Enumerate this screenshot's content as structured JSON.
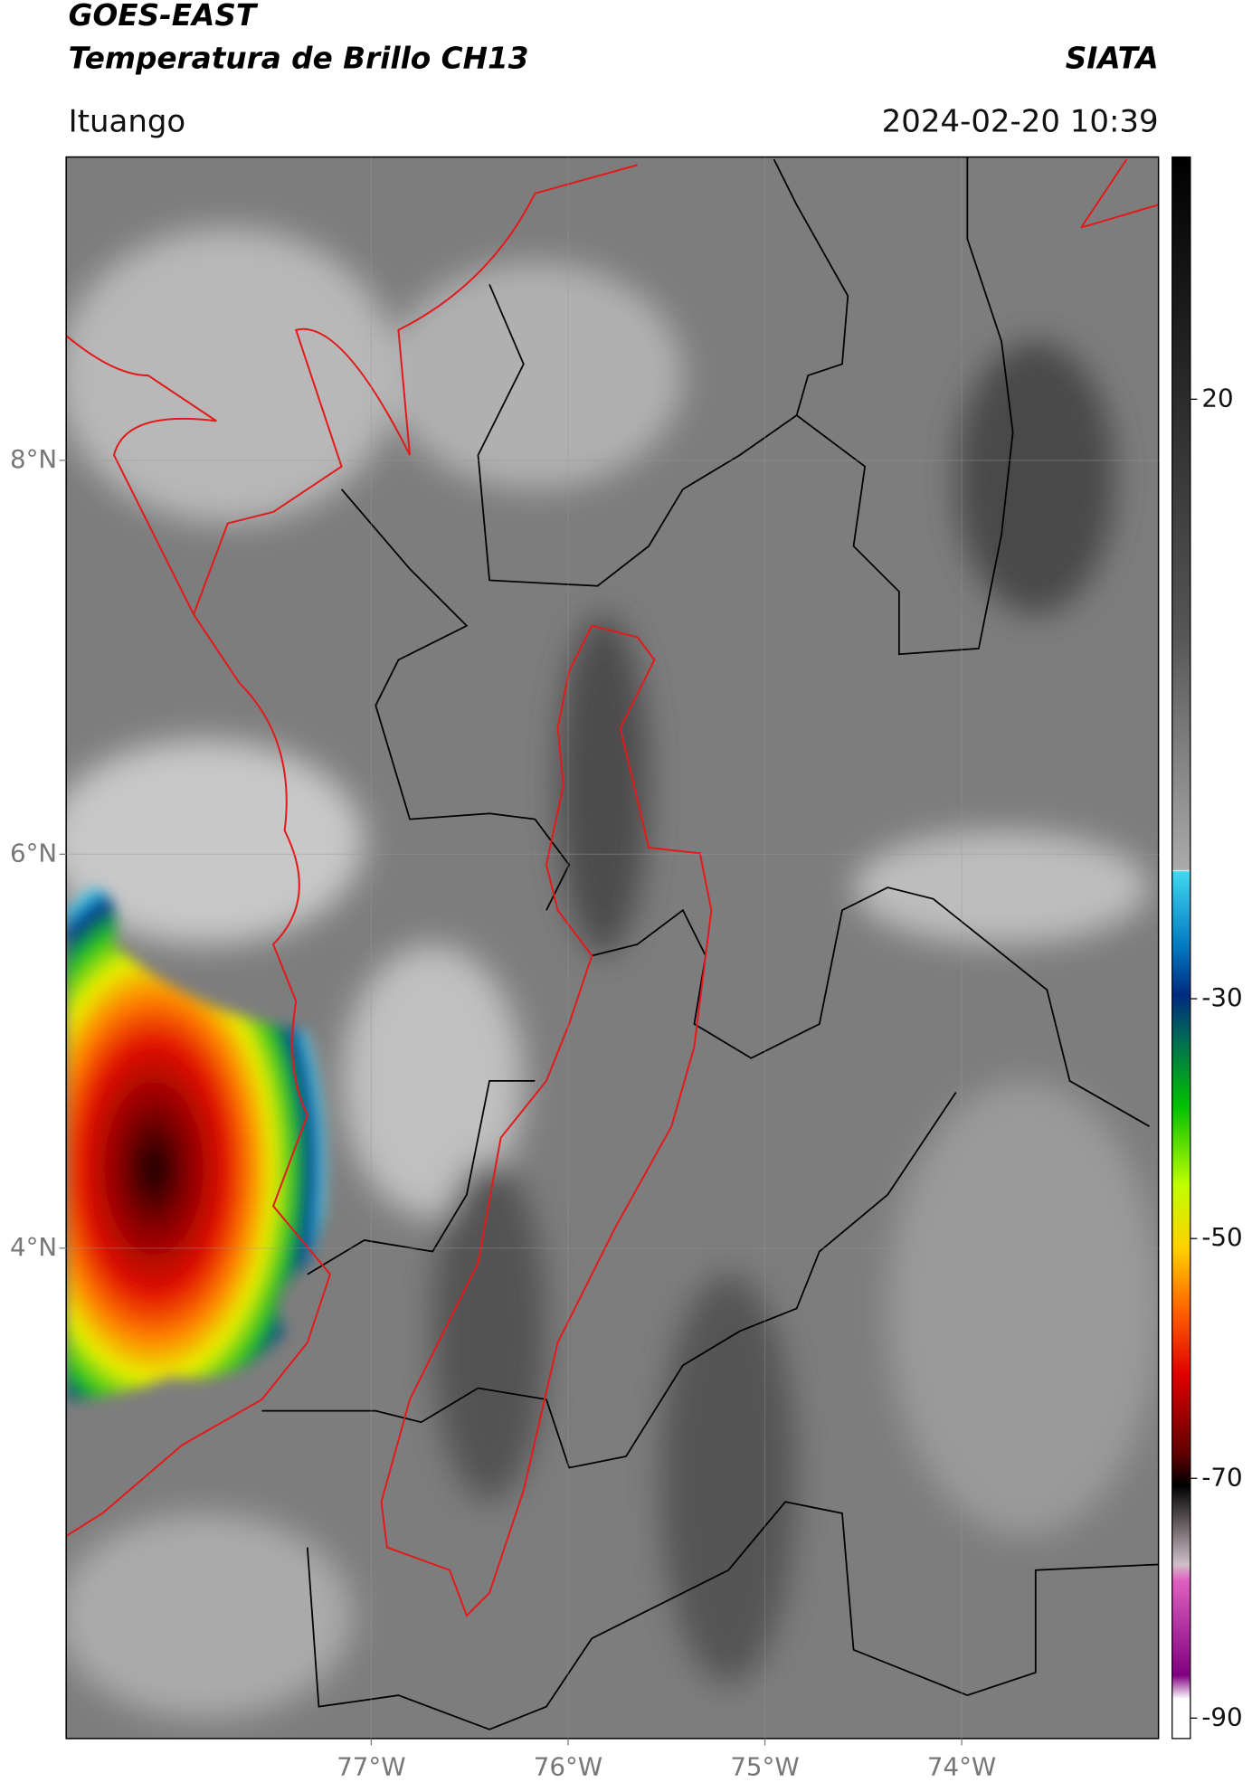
{
  "header": {
    "title": "GOES-EAST",
    "subtitle": "Temperatura de Brillo CH13",
    "brand": "SIATA",
    "location": "Ituango",
    "timestamp": "2024-02-20 10:39"
  },
  "map": {
    "lonlim": [
      -78.55,
      -73.0
    ],
    "latlim": [
      1.51,
      9.54
    ],
    "lonticks": [
      {
        "value": -77,
        "label": "77°W"
      },
      {
        "value": -76,
        "label": "76°W"
      },
      {
        "value": -75,
        "label": "75°W"
      },
      {
        "value": -74,
        "label": "74°W"
      }
    ],
    "latticks": [
      {
        "value": 8,
        "label": "8°N"
      },
      {
        "value": 6,
        "label": "6°N"
      },
      {
        "value": 4,
        "label": "4°N"
      }
    ],
    "grid": true
  },
  "colorbar": {
    "lim": [
      -91.7,
      40.2
    ],
    "ticks": [
      20,
      -30,
      -50,
      -70,
      -90
    ]
  }
}
